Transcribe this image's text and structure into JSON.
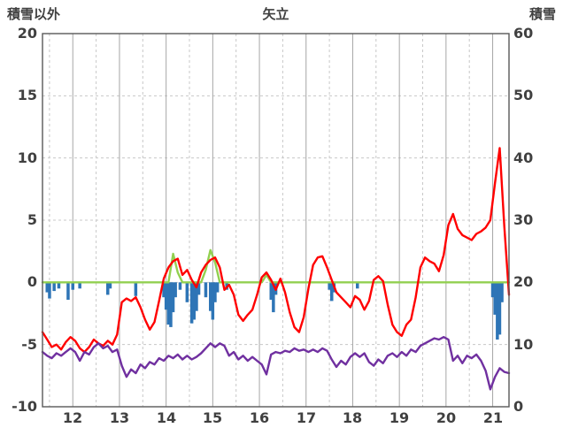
{
  "header": {
    "title": "矢立",
    "left_axis_title": "積雪以外",
    "right_axis_title": "積雪"
  },
  "colors": {
    "text": "#404040",
    "border": "#595959",
    "grid_solid": "#A6A6A6",
    "grid_dashed": "#C8C8C8",
    "red_line": "#FF0000",
    "purple_line": "#7030A0",
    "green_line": "#92D050",
    "blue_bars": "#2E75B6"
  },
  "chart_data": {
    "type": "line",
    "title": "矢立",
    "left_axis": {
      "label": "積雪以外",
      "min": -10,
      "max": 20,
      "ticks": [
        20,
        15,
        10,
        5,
        0,
        -5,
        -10
      ]
    },
    "right_axis": {
      "label": "積雪",
      "min": 0,
      "max": 60,
      "ticks": [
        60,
        50,
        40,
        30,
        20,
        10,
        0
      ]
    },
    "x_axis": {
      "min": 11.35,
      "max": 21.35,
      "tick_labels": [
        12,
        13,
        14,
        15,
        16,
        17,
        18,
        19,
        20,
        21
      ],
      "grid_solid_at": [
        12,
        13,
        14,
        15,
        16,
        17,
        18,
        19,
        20,
        21
      ],
      "grid_dashed_at": [
        11.5,
        12.5,
        13.5,
        14.5,
        15.5,
        16.5,
        17.5,
        18.5,
        19.5,
        20.5
      ]
    },
    "x_start": 11.35,
    "x_step": 0.1,
    "series": [
      {
        "name": "red-line",
        "color": "#FF0000",
        "axis": "left",
        "values": [
          -4.0,
          -4.6,
          -5.2,
          -5.0,
          -5.4,
          -4.8,
          -4.4,
          -4.7,
          -5.3,
          -5.6,
          -5.2,
          -4.6,
          -4.9,
          -5.1,
          -4.7,
          -5.0,
          -4.2,
          -1.6,
          -1.3,
          -1.5,
          -1.2,
          -2.0,
          -3.0,
          -3.8,
          -3.2,
          -1.5,
          0.3,
          1.2,
          1.7,
          1.9,
          0.6,
          1.0,
          0.2,
          -0.4,
          0.8,
          1.4,
          1.8,
          2.0,
          1.2,
          -0.6,
          -0.2,
          -1.0,
          -2.6,
          -3.1,
          -2.6,
          -2.2,
          -1.0,
          0.4,
          0.8,
          0.2,
          -0.6,
          0.3,
          -0.8,
          -2.4,
          -3.6,
          -4.0,
          -2.8,
          -0.5,
          1.4,
          2.0,
          2.1,
          1.2,
          0.2,
          -0.8,
          -1.2,
          -1.6,
          -2.0,
          -1.1,
          -1.4,
          -2.2,
          -1.5,
          0.2,
          0.5,
          0.1,
          -1.8,
          -3.4,
          -4.0,
          -4.3,
          -3.4,
          -3.0,
          -1.2,
          1.2,
          2.0,
          1.7,
          1.5,
          0.9,
          2.2,
          4.6,
          5.5,
          4.3,
          3.8,
          3.6,
          3.4,
          3.9,
          4.1,
          4.4,
          5.0,
          8.0,
          10.8,
          4.5,
          -1.0
        ]
      },
      {
        "name": "purple-line",
        "color": "#7030A0",
        "axis": "left",
        "values": [
          -5.6,
          -5.9,
          -6.1,
          -5.7,
          -5.9,
          -5.6,
          -5.3,
          -5.6,
          -6.3,
          -5.6,
          -5.8,
          -5.2,
          -4.9,
          -5.3,
          -5.1,
          -5.6,
          -5.4,
          -6.7,
          -7.6,
          -7.0,
          -7.3,
          -6.6,
          -6.9,
          -6.4,
          -6.6,
          -6.1,
          -6.3,
          -5.9,
          -6.1,
          -5.8,
          -6.2,
          -5.9,
          -6.2,
          -6.0,
          -5.7,
          -5.3,
          -4.9,
          -5.2,
          -4.9,
          -5.1,
          -5.9,
          -5.6,
          -6.2,
          -5.9,
          -6.3,
          -6.0,
          -6.3,
          -6.6,
          -7.4,
          -5.8,
          -5.6,
          -5.7,
          -5.5,
          -5.6,
          -5.3,
          -5.5,
          -5.4,
          -5.6,
          -5.4,
          -5.6,
          -5.3,
          -5.5,
          -6.2,
          -6.8,
          -6.3,
          -6.6,
          -6.0,
          -5.7,
          -6.0,
          -5.7,
          -6.4,
          -6.7,
          -6.2,
          -6.5,
          -5.9,
          -5.7,
          -6.0,
          -5.6,
          -5.9,
          -5.4,
          -5.6,
          -5.1,
          -4.9,
          -4.7,
          -4.5,
          -4.6,
          -4.4,
          -4.6,
          -6.3,
          -5.9,
          -6.5,
          -5.9,
          -6.1,
          -5.8,
          -6.3,
          -7.1,
          -8.6,
          -7.6,
          -6.9,
          -7.2,
          -7.3
        ]
      },
      {
        "name": "green-line",
        "color": "#92D050",
        "axis": "left",
        "values": [
          0,
          0,
          0,
          0,
          0,
          0,
          0,
          0,
          0,
          0,
          0,
          0,
          0,
          0,
          0,
          0,
          0,
          0,
          0,
          0,
          0,
          0,
          0,
          0,
          0,
          0,
          0,
          0,
          2.3,
          0.8,
          0,
          0,
          0,
          0,
          0,
          1.0,
          2.6,
          1.6,
          0,
          0,
          0,
          0,
          0,
          0,
          0,
          0,
          0,
          0,
          0.6,
          0,
          0,
          0,
          0,
          0,
          0,
          0,
          0,
          0,
          0,
          0,
          0,
          0,
          0,
          0,
          0,
          0,
          0,
          0,
          0,
          0,
          0,
          0,
          0,
          0,
          0,
          0,
          0,
          0,
          0,
          0,
          0,
          0,
          0,
          0,
          0,
          0,
          0,
          0,
          0,
          0,
          0,
          0,
          0,
          0,
          0,
          0,
          0,
          0,
          0,
          0,
          0
        ]
      }
    ],
    "bars": {
      "name": "blue-bars",
      "color": "#2E75B6",
      "axis": "left",
      "points": [
        [
          11.45,
          -0.8
        ],
        [
          11.5,
          -1.3
        ],
        [
          11.6,
          -0.7
        ],
        [
          11.7,
          -0.5
        ],
        [
          11.9,
          -1.4
        ],
        [
          12.0,
          -0.6
        ],
        [
          12.15,
          -0.5
        ],
        [
          12.75,
          -1.0
        ],
        [
          12.8,
          -0.5
        ],
        [
          13.35,
          -1.1
        ],
        [
          13.95,
          -1.2
        ],
        [
          14.0,
          -2.2
        ],
        [
          14.05,
          -3.4
        ],
        [
          14.1,
          -3.6
        ],
        [
          14.15,
          -2.4
        ],
        [
          14.2,
          -1.2
        ],
        [
          14.3,
          -0.6
        ],
        [
          14.45,
          -1.6
        ],
        [
          14.55,
          -3.3
        ],
        [
          14.6,
          -3.0
        ],
        [
          14.65,
          -2.3
        ],
        [
          14.7,
          -1.0
        ],
        [
          14.85,
          -1.2
        ],
        [
          14.95,
          -2.3
        ],
        [
          15.0,
          -3.0
        ],
        [
          15.05,
          -1.6
        ],
        [
          15.1,
          -0.8
        ],
        [
          15.3,
          -0.6
        ],
        [
          16.25,
          -1.4
        ],
        [
          16.3,
          -2.4
        ],
        [
          16.35,
          -1.0
        ],
        [
          17.5,
          -0.6
        ],
        [
          17.55,
          -1.5
        ],
        [
          17.6,
          -0.8
        ],
        [
          18.1,
          -0.5
        ],
        [
          21.0,
          -1.2
        ],
        [
          21.05,
          -2.6
        ],
        [
          21.1,
          -4.6
        ],
        [
          21.15,
          -4.2
        ],
        [
          21.2,
          -1.6
        ]
      ]
    }
  }
}
